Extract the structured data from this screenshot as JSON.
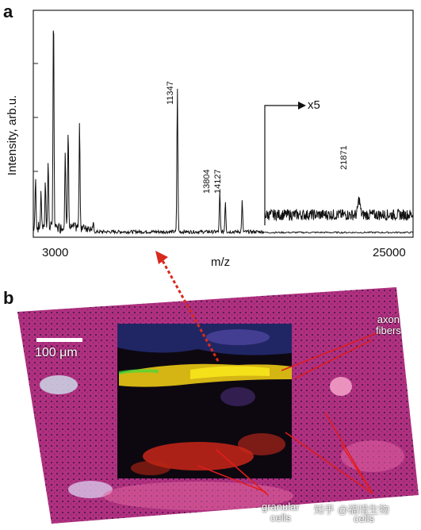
{
  "panel_a": {
    "label": "a",
    "y_axis_label": "Intensity, arb.u.",
    "x_axis_label": "m/z",
    "x_tick_min": "3000",
    "x_tick_max": "25000",
    "magnification_label": "x5",
    "peak_labels": [
      "11347",
      "13804",
      "14127",
      "21871"
    ]
  },
  "panel_b": {
    "label": "b",
    "scale_bar": "100 μm",
    "annotations": {
      "axon": [
        "axon",
        "fibers"
      ],
      "granular_left": [
        "granular",
        "cells"
      ],
      "granular_right": [
        "cells"
      ]
    }
  },
  "watermark": "知乎 @福惜生物",
  "colors": {
    "tissue_magenta": "#b0307f",
    "tissue_purple": "#6a2a6e",
    "tissue_pink": "#d64a8c",
    "signal_yellow": "#f5e11a",
    "signal_red": "#e22a1a",
    "signal_green": "#3fdc3a",
    "signal_blue": "#2b2d9c",
    "arrow_red": "#d8291e"
  },
  "chart_data": {
    "type": "line",
    "xlabel": "m/z",
    "ylabel": "Intensity, arb.u.",
    "xlim": [
      3000,
      25000
    ],
    "y_scale_note": "region from ~16500 to 25000 magnified x5",
    "peaks": [
      {
        "mz": 3130,
        "intensity": 0.22
      },
      {
        "mz": 3450,
        "intensity": 0.16
      },
      {
        "mz": 3700,
        "intensity": 0.21
      },
      {
        "mz": 3860,
        "intensity": 0.3
      },
      {
        "mz": 4170,
        "intensity": 1.0
      },
      {
        "mz": 4850,
        "intensity": 0.36
      },
      {
        "mz": 5020,
        "intensity": 0.45
      },
      {
        "mz": 5680,
        "intensity": 0.47
      },
      {
        "mz": 11347,
        "intensity": 0.65,
        "label": "11347"
      },
      {
        "mz": 13804,
        "intensity": 0.18,
        "label": "13804"
      },
      {
        "mz": 14127,
        "intensity": 0.14,
        "label": "14127"
      },
      {
        "mz": 15100,
        "intensity": 0.14
      },
      {
        "mz": 21871,
        "intensity": 0.2,
        "label": "21871",
        "magnified": true
      }
    ]
  }
}
